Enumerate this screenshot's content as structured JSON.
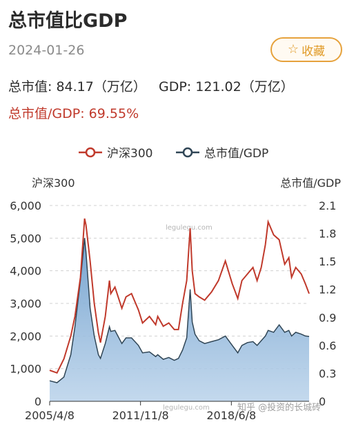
{
  "header": {
    "title": "总市值比GDP",
    "date": "2024-01-26",
    "favorite_label": "收藏",
    "favorite_icon": "star-outline-icon"
  },
  "summary": {
    "market_cap_label": "总市值:",
    "market_cap_value": "84.17",
    "market_cap_unit": "（万亿）",
    "gdp_label": "GDP:",
    "gdp_value": "121.02",
    "gdp_unit": "（万亿）",
    "ratio_label": "总市值/GDP:",
    "ratio_value": "69.55%"
  },
  "colors": {
    "hs300": "#c0392b",
    "ratio_line": "#2f4555",
    "ratio_fill_top": "#6f9fcd",
    "ratio_fill_bottom": "#b9d2ea",
    "accent": "#e6a23c"
  },
  "watermarks": {
    "top": "legulegu.com",
    "bottom": "legulegu.com",
    "source": "知乎 @投资的长城砖"
  },
  "chart_data": {
    "type": "line",
    "legend": [
      "沪深300",
      "总市值/GDP"
    ],
    "legend_position": "top-center",
    "y_left_label": "沪深300",
    "y_right_label": "总市值/GDP",
    "y_left_ticks": [
      "0",
      "1,000",
      "2,000",
      "3,000",
      "4,000",
      "5,000",
      "6,000"
    ],
    "y_right_ticks": [
      "0",
      "0.3",
      "0.6",
      "0.9",
      "1.2",
      "1.5",
      "1.8",
      "2.1"
    ],
    "x_tick_labels": [
      "2005/4/8",
      "2011/11/8",
      "2018/6/8"
    ],
    "y_left_range": [
      0,
      6000
    ],
    "y_right_range": [
      0,
      2.1
    ],
    "x_range": [
      2005.27,
      2024.07
    ],
    "grid": true,
    "series": [
      {
        "name": "沪深300",
        "axis": "left",
        "x": [
          2005.27,
          2005.8,
          2006.3,
          2006.8,
          2007.1,
          2007.5,
          2007.8,
          2007.9,
          2008.2,
          2008.5,
          2008.8,
          2008.95,
          2009.3,
          2009.6,
          2009.7,
          2010.0,
          2010.5,
          2010.8,
          2011.2,
          2011.7,
          2012.0,
          2012.5,
          2012.95,
          2013.1,
          2013.5,
          2013.9,
          2014.3,
          2014.6,
          2014.9,
          2015.2,
          2015.45,
          2015.6,
          2015.8,
          2016.1,
          2016.5,
          2017.0,
          2017.5,
          2018.0,
          2018.5,
          2018.9,
          2019.2,
          2019.6,
          2020.0,
          2020.3,
          2020.6,
          2020.9,
          2021.1,
          2021.5,
          2021.9,
          2022.3,
          2022.6,
          2022.8,
          2023.1,
          2023.5,
          2023.8,
          2024.07
        ],
        "values": [
          950,
          870,
          1300,
          2000,
          2600,
          3800,
          5600,
          5400,
          4300,
          3000,
          2100,
          1800,
          2600,
          3700,
          3300,
          3500,
          2850,
          3200,
          3300,
          2800,
          2400,
          2600,
          2350,
          2600,
          2300,
          2400,
          2200,
          2200,
          3000,
          3700,
          5300,
          4000,
          3300,
          3200,
          3100,
          3350,
          3700,
          4300,
          3600,
          3150,
          3700,
          3900,
          4100,
          3700,
          4100,
          4800,
          5500,
          5100,
          4950,
          4200,
          4400,
          3800,
          4100,
          3900,
          3600,
          3300
        ]
      },
      {
        "name": "总市值/GDP",
        "axis": "right",
        "x": [
          2005.27,
          2005.8,
          2006.3,
          2006.8,
          2007.1,
          2007.5,
          2007.8,
          2007.9,
          2008.2,
          2008.5,
          2008.8,
          2008.95,
          2009.3,
          2009.6,
          2009.7,
          2010.0,
          2010.5,
          2010.8,
          2011.2,
          2011.7,
          2012.0,
          2012.5,
          2012.95,
          2013.1,
          2013.5,
          2013.9,
          2014.3,
          2014.6,
          2014.9,
          2015.2,
          2015.45,
          2015.6,
          2015.8,
          2016.1,
          2016.5,
          2017.0,
          2017.5,
          2018.0,
          2018.5,
          2018.9,
          2019.2,
          2019.6,
          2020.0,
          2020.3,
          2020.6,
          2020.9,
          2021.1,
          2021.5,
          2021.9,
          2022.3,
          2022.6,
          2022.8,
          2023.1,
          2023.5,
          2023.8,
          2024.07
        ],
        "values": [
          0.22,
          0.2,
          0.26,
          0.5,
          0.8,
          1.3,
          1.75,
          1.6,
          1.0,
          0.7,
          0.5,
          0.46,
          0.62,
          0.8,
          0.75,
          0.76,
          0.62,
          0.68,
          0.68,
          0.6,
          0.52,
          0.53,
          0.48,
          0.5,
          0.45,
          0.47,
          0.44,
          0.46,
          0.55,
          0.68,
          1.2,
          0.85,
          0.72,
          0.65,
          0.62,
          0.64,
          0.66,
          0.7,
          0.6,
          0.52,
          0.6,
          0.63,
          0.64,
          0.6,
          0.65,
          0.7,
          0.76,
          0.74,
          0.82,
          0.74,
          0.76,
          0.7,
          0.74,
          0.72,
          0.7,
          0.6955
        ]
      }
    ]
  }
}
